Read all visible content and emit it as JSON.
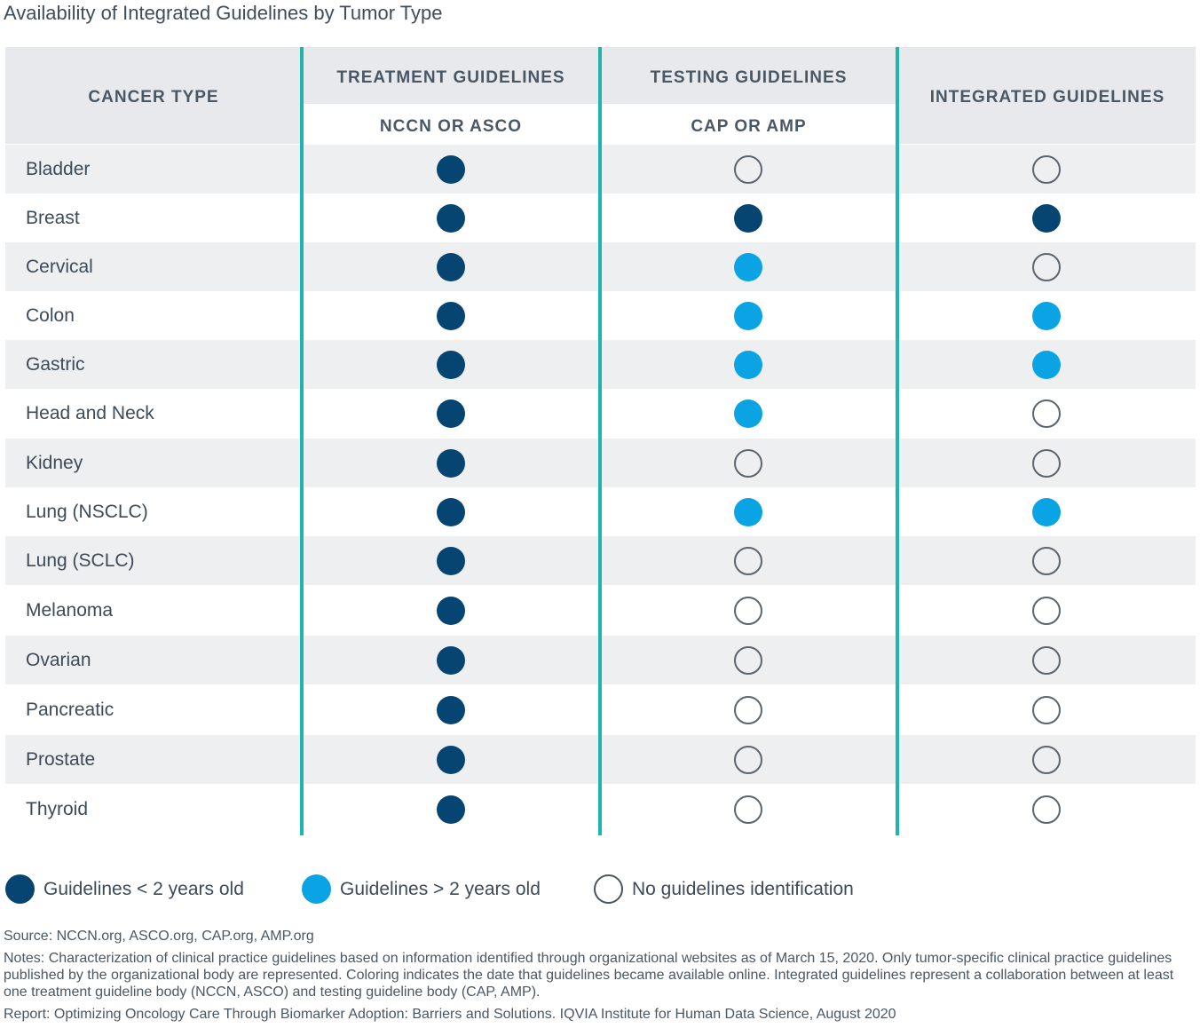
{
  "title": "Availability of Integrated Guidelines by Tumor Type",
  "header": {
    "cancer_type": "CANCER TYPE",
    "treatment": "TREATMENT GUIDELINES",
    "treatment_sub": "NCCN OR ASCO",
    "testing": "TESTING GUIDELINES",
    "testing_sub": "CAP OR AMP",
    "integrated": "INTEGRATED GUIDELINES"
  },
  "chart_data": {
    "type": "table",
    "title": "Availability of Integrated Guidelines by Tumor Type",
    "columns": [
      "CANCER TYPE",
      "TREATMENT GUIDELINES (NCCN OR ASCO)",
      "TESTING GUIDELINES (CAP OR AMP)",
      "INTEGRATED GUIDELINES"
    ],
    "status_legend": {
      "recent": "Guidelines < 2 years old",
      "older": "Guidelines > 2 years old",
      "none": "No guidelines identification"
    },
    "rows": [
      {
        "cancer": "Bladder",
        "treatment": "recent",
        "testing": "none",
        "integrated": "none"
      },
      {
        "cancer": "Breast",
        "treatment": "recent",
        "testing": "recent",
        "integrated": "recent"
      },
      {
        "cancer": "Cervical",
        "treatment": "recent",
        "testing": "older",
        "integrated": "none"
      },
      {
        "cancer": "Colon",
        "treatment": "recent",
        "testing": "older",
        "integrated": "older"
      },
      {
        "cancer": "Gastric",
        "treatment": "recent",
        "testing": "older",
        "integrated": "older"
      },
      {
        "cancer": "Head and Neck",
        "treatment": "recent",
        "testing": "older",
        "integrated": "none"
      },
      {
        "cancer": "Kidney",
        "treatment": "recent",
        "testing": "none",
        "integrated": "none"
      },
      {
        "cancer": "Lung (NSCLC)",
        "treatment": "recent",
        "testing": "older",
        "integrated": "older"
      },
      {
        "cancer": "Lung (SCLC)",
        "treatment": "recent",
        "testing": "none",
        "integrated": "none"
      },
      {
        "cancer": "Melanoma",
        "treatment": "recent",
        "testing": "none",
        "integrated": "none"
      },
      {
        "cancer": "Ovarian",
        "treatment": "recent",
        "testing": "none",
        "integrated": "none"
      },
      {
        "cancer": "Pancreatic",
        "treatment": "recent",
        "testing": "none",
        "integrated": "none"
      },
      {
        "cancer": "Prostate",
        "treatment": "recent",
        "testing": "none",
        "integrated": "none"
      },
      {
        "cancer": "Thyroid",
        "treatment": "recent",
        "testing": "none",
        "integrated": "none"
      }
    ]
  },
  "colors": {
    "recent": "#064572",
    "older": "#0aa3e4",
    "divider": "#1fb5ad",
    "header_bg": "#e8e9ec"
  },
  "legend": {
    "recent": "Guidelines < 2 years old",
    "older": "Guidelines > 2 years old",
    "none": "No guidelines identification"
  },
  "footer": {
    "source": "Source: NCCN.org, ASCO.org, CAP.org, AMP.org",
    "notes": "Notes: Characterization of clinical practice guidelines based on information identified through organizational websites as of March 15, 2020. Only tumor-specific clinical practice guidelines published by the organizational body are represented. Coloring indicates the date that guidelines became available online. Integrated guidelines represent a collaboration between at least one treatment guideline body (NCCN, ASCO) and testing guideline body (CAP, AMP).",
    "report": "Report: Optimizing Oncology Care Through Biomarker Adoption: Barriers and Solutions. IQVIA Institute for Human Data Science, August 2020"
  }
}
